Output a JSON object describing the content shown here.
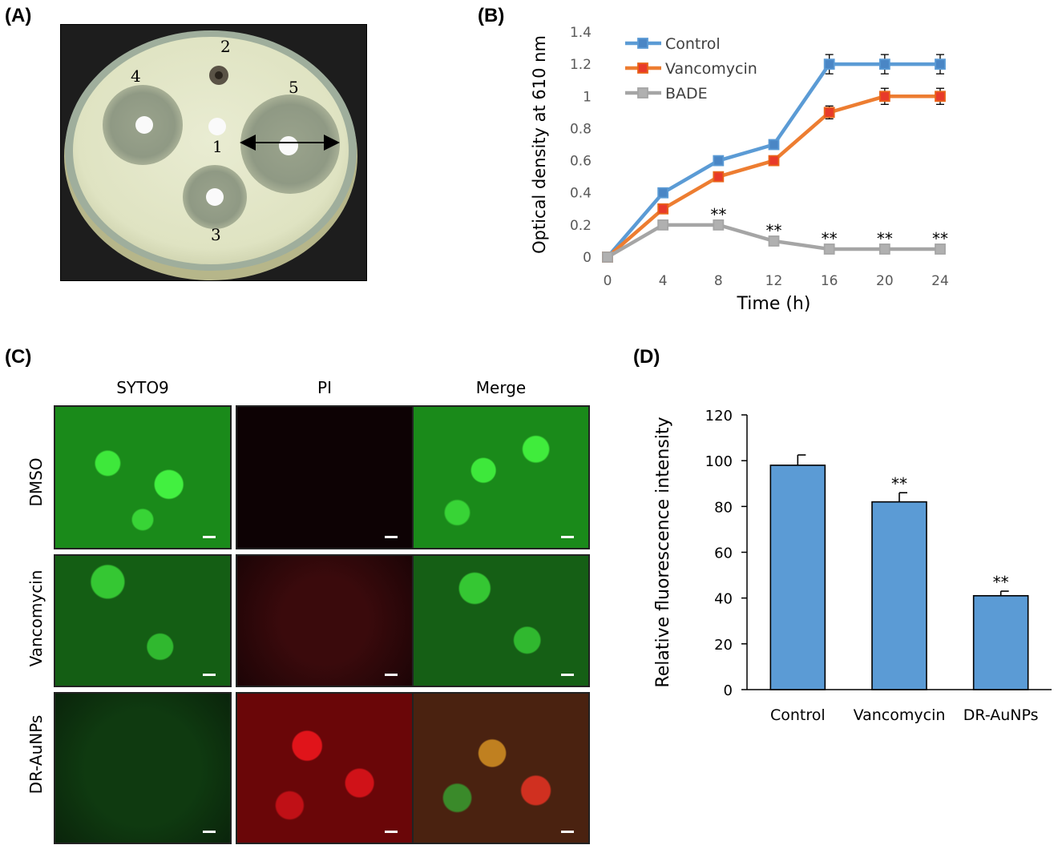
{
  "panels": {
    "a": "(A)",
    "b": "(B)",
    "c": "(C)",
    "d": "(D)"
  },
  "petri_labels": [
    "1",
    "2",
    "3",
    "4",
    "5"
  ],
  "micro": {
    "columns": [
      "SYTO9",
      "PI",
      "Merge"
    ],
    "rows": [
      "DMSO",
      "Vancomycin",
      "DR-AuNPs"
    ]
  },
  "chart_data": [
    {
      "type": "line",
      "panel": "(B)",
      "xlabel": "Time (h)",
      "ylabel": "Optical density at 610 nm",
      "x": [
        0,
        4,
        8,
        12,
        16,
        20,
        24
      ],
      "xlim": [
        0,
        24
      ],
      "ylim": [
        0,
        1.4
      ],
      "yticks": [
        0,
        0.2,
        0.4,
        0.6,
        0.8,
        1,
        1.2,
        1.4
      ],
      "xticks": [
        0,
        4,
        8,
        12,
        16,
        20,
        24
      ],
      "grid": false,
      "legend": "top-left",
      "series": [
        {
          "name": "Control",
          "color": "#5b9bd5",
          "marker": "#4a86c5",
          "values": [
            0,
            0.4,
            0.6,
            0.7,
            1.2,
            1.2,
            1.2
          ],
          "errors": [
            0,
            0,
            0,
            0.02,
            0.06,
            0.06,
            0.06
          ]
        },
        {
          "name": "Vancomycin",
          "color": "#ed7d31",
          "marker": "#e83a2a",
          "values": [
            0,
            0.3,
            0.5,
            0.6,
            0.9,
            1.0,
            1.0
          ],
          "errors": [
            0,
            0,
            0,
            0,
            0.04,
            0.05,
            0.05
          ]
        },
        {
          "name": "BADE",
          "color": "#a5a5a5",
          "marker": "#b0b0b0",
          "values": [
            0,
            0.2,
            0.2,
            0.1,
            0.05,
            0.05,
            0.05
          ],
          "errors": [
            0,
            0,
            0,
            0,
            0,
            0,
            0
          ]
        }
      ],
      "annotations": [
        {
          "x": 8,
          "y": 0.2,
          "text": "**"
        },
        {
          "x": 12,
          "y": 0.1,
          "text": "**"
        },
        {
          "x": 16,
          "y": 0.05,
          "text": "**"
        },
        {
          "x": 20,
          "y": 0.05,
          "text": "**"
        },
        {
          "x": 24,
          "y": 0.05,
          "text": "**"
        }
      ]
    },
    {
      "type": "bar",
      "panel": "(D)",
      "xlabel": "",
      "ylabel": "Relative fluorescence intensity",
      "categories": [
        "Control",
        "Vancomycin",
        "DR-AuNPs"
      ],
      "values": [
        98,
        82,
        41
      ],
      "errors": [
        4.5,
        4,
        2
      ],
      "significance": [
        "",
        "**",
        "**"
      ],
      "ylim": [
        0,
        120
      ],
      "yticks": [
        0,
        20,
        40,
        60,
        80,
        100,
        120
      ],
      "grid": false,
      "color": "#5b9bd5"
    }
  ]
}
